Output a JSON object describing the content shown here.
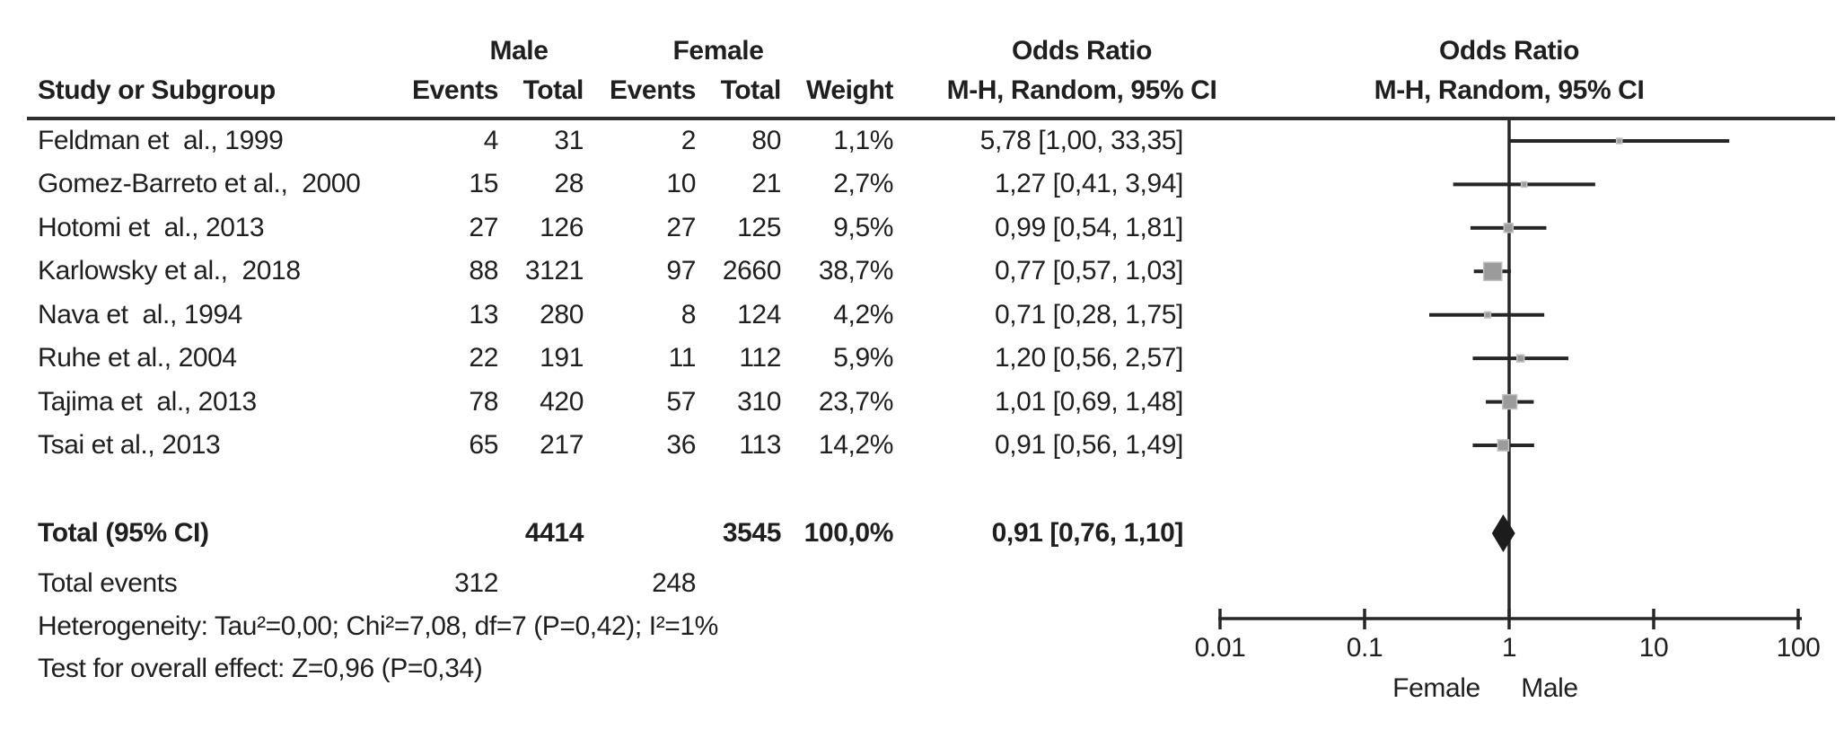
{
  "figure_title": "Forest plot: Odds Ratio Male vs Female, M-H Random effects",
  "chart_data": {
    "type": "forest",
    "effect_measure": "Odds Ratio",
    "model": "M-H, Random, 95% CI",
    "x_scale": "log10",
    "x_range": [
      0.01,
      100
    ],
    "axis_ticks": [
      0.01,
      0.1,
      1,
      10,
      100
    ],
    "axis_tick_labels": [
      "0.01",
      "0.1",
      "1",
      "10",
      "100"
    ],
    "axis": {
      "left_label": "Female",
      "right_label": "Male"
    },
    "header": {
      "study_col": "Study or Subgroup",
      "group1": "Male",
      "group2": "Female",
      "events_col": "Events",
      "total_col": "Total",
      "weight_col": "Weight",
      "or_title": "Odds Ratio",
      "or_subtitle": "M-H, Random, 95% CI"
    },
    "studies": [
      {
        "name": "Feldman et  al., 1999",
        "male_events": 4,
        "male_total": 31,
        "female_events": 2,
        "female_total": 80,
        "weight": "1,1%",
        "weight_pct": 1.1,
        "or": 5.78,
        "ci_low": 1.0,
        "ci_high": 33.35,
        "ci_text": "5,78 [1,00, 33,35]"
      },
      {
        "name": "Gomez-Barreto et al.,  2000",
        "male_events": 15,
        "male_total": 28,
        "female_events": 10,
        "female_total": 21,
        "weight": "2,7%",
        "weight_pct": 2.7,
        "or": 1.27,
        "ci_low": 0.41,
        "ci_high": 3.94,
        "ci_text": "1,27 [0,41, 3,94]"
      },
      {
        "name": "Hotomi et  al., 2013",
        "male_events": 27,
        "male_total": 126,
        "female_events": 27,
        "female_total": 125,
        "weight": "9,5%",
        "weight_pct": 9.5,
        "or": 0.99,
        "ci_low": 0.54,
        "ci_high": 1.81,
        "ci_text": "0,99 [0,54, 1,81]"
      },
      {
        "name": "Karlowsky et al.,  2018",
        "male_events": 88,
        "male_total": 3121,
        "female_events": 97,
        "female_total": 2660,
        "weight": "38,7%",
        "weight_pct": 38.7,
        "or": 0.77,
        "ci_low": 0.57,
        "ci_high": 1.03,
        "ci_text": "0,77 [0,57, 1,03]"
      },
      {
        "name": "Nava et  al., 1994",
        "male_events": 13,
        "male_total": 280,
        "female_events": 8,
        "female_total": 124,
        "weight": "4,2%",
        "weight_pct": 4.2,
        "or": 0.71,
        "ci_low": 0.28,
        "ci_high": 1.75,
        "ci_text": "0,71 [0,28, 1,75]"
      },
      {
        "name": "Ruhe et al., 2004",
        "male_events": 22,
        "male_total": 191,
        "female_events": 11,
        "female_total": 112,
        "weight": "5,9%",
        "weight_pct": 5.9,
        "or": 1.2,
        "ci_low": 0.56,
        "ci_high": 2.57,
        "ci_text": "1,20 [0,56, 2,57]"
      },
      {
        "name": "Tajima et  al., 2013",
        "male_events": 78,
        "male_total": 420,
        "female_events": 57,
        "female_total": 310,
        "weight": "23,7%",
        "weight_pct": 23.7,
        "or": 1.01,
        "ci_low": 0.69,
        "ci_high": 1.48,
        "ci_text": "1,01 [0,69, 1,48]"
      },
      {
        "name": "Tsai et al., 2013",
        "male_events": 65,
        "male_total": 217,
        "female_events": 36,
        "female_total": 113,
        "weight": "14,2%",
        "weight_pct": 14.2,
        "or": 0.91,
        "ci_low": 0.56,
        "ci_high": 1.49,
        "ci_text": "0,91 [0,56, 1,49]"
      }
    ],
    "total": {
      "label": "Total (95% CI)",
      "male_total": 4414,
      "female_total": 3545,
      "weight": "100,0%",
      "or": 0.91,
      "ci_low": 0.76,
      "ci_high": 1.1,
      "ci_text": "0,91 [0,76, 1,10]"
    },
    "total_events": {
      "label": "Total events",
      "male": 312,
      "female": 248
    },
    "heterogeneity": "Heterogeneity: Tau²=0,00; Chi²=7,08, df=7 (P=0,42); I²=1%",
    "overall_effect": "Test for overall effect: Z=0,96 (P=0,34)",
    "colors": {
      "text": "#1f1f1f",
      "line": "#262626",
      "marker_fill": "#9b9b9b",
      "marker_edge": "#c2c2c2",
      "diamond": "#1c1c1c"
    }
  }
}
